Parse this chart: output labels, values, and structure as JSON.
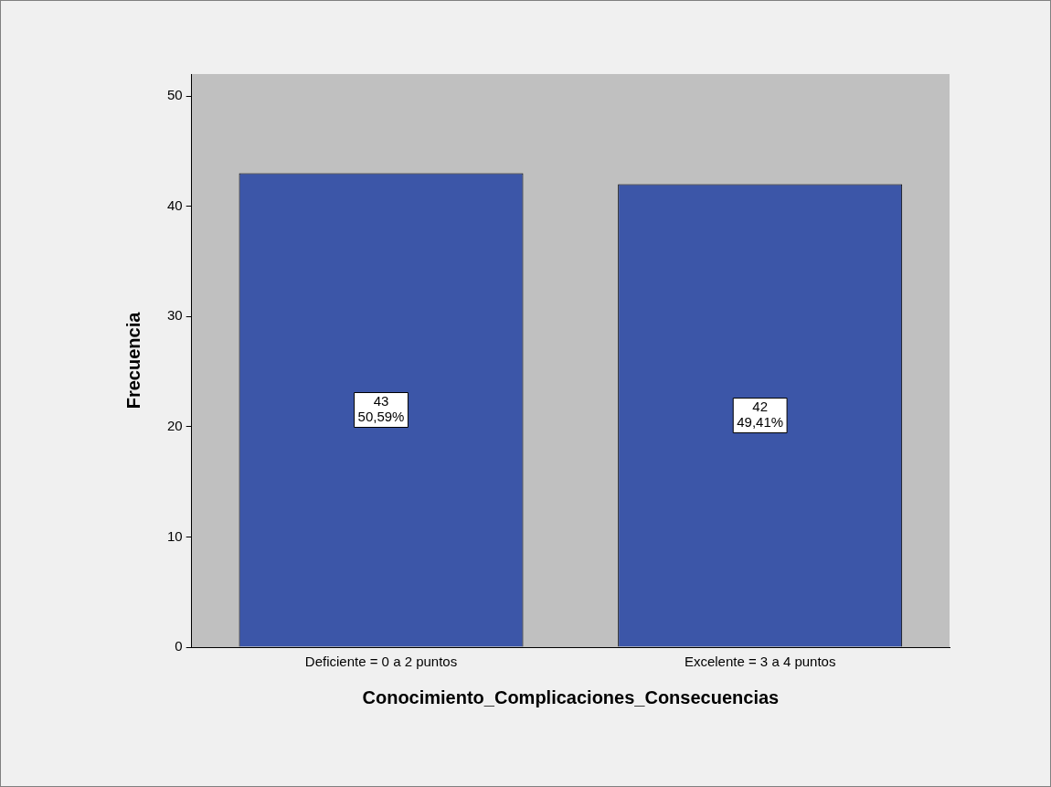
{
  "chart_data": {
    "type": "bar",
    "xlabel": "Conocimiento_Complicaciones_Consecuencias",
    "ylabel": "Frecuencia",
    "categories": [
      "Deficiente = 0 a 2 puntos",
      "Excelente = 3 a 4 puntos"
    ],
    "values": [
      43,
      42
    ],
    "color": "#3c56a8",
    "value_labels": [
      "43\n50,59%",
      "42\n49,41%"
    ],
    "ylim": [
      0,
      52
    ],
    "yticks": [
      0,
      10,
      20,
      30,
      40,
      50
    ],
    "grid": false,
    "legend": false
  }
}
